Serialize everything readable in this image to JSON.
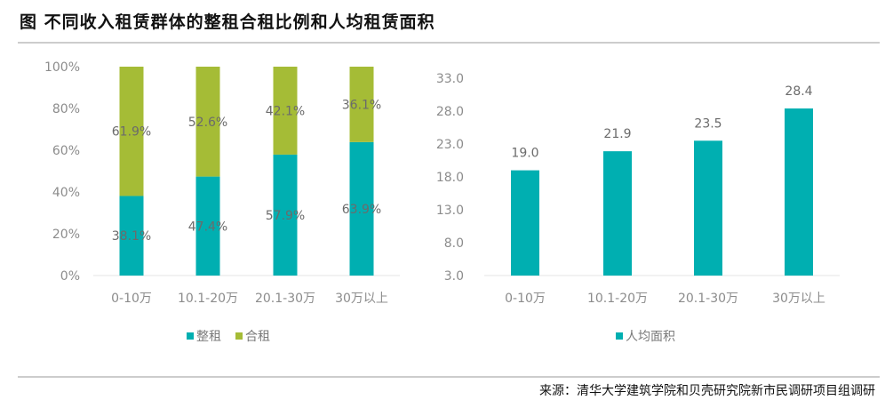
{
  "title": "图  不同收入租赁群体的整租合租比例和人均租赁面积",
  "source": "来源：清华大学建筑学院和贝壳研究院新市民调研项目组调研",
  "colors": {
    "teal": "#00AFB1",
    "green": "#A5BC36"
  },
  "chart_data": [
    {
      "type": "bar",
      "stacked": true,
      "categories": [
        "0-10万",
        "10.1-20万",
        "20.1-30万",
        "30万以上"
      ],
      "series": [
        {
          "name": "整租",
          "values": [
            38.1,
            47.4,
            57.9,
            63.9
          ],
          "labels": [
            "38.1%",
            "47.4%",
            "57.9%",
            "63.9%"
          ],
          "color": "#00AFB1"
        },
        {
          "name": "合租",
          "values": [
            61.9,
            52.6,
            42.1,
            36.1
          ],
          "labels": [
            "61.9%",
            "52.6%",
            "42.1%",
            "36.1%"
          ],
          "color": "#A5BC36"
        }
      ],
      "ylim": [
        0,
        100
      ],
      "yticks": [
        "0%",
        "20%",
        "40%",
        "60%",
        "80%",
        "100%"
      ],
      "legend": "bottom",
      "grid": false
    },
    {
      "type": "bar",
      "categories": [
        "0-10万",
        "10.1-20万",
        "20.1-30万",
        "30万以上"
      ],
      "series": [
        {
          "name": "人均面积",
          "values": [
            19.0,
            21.9,
            23.5,
            28.4
          ],
          "labels": [
            "19.0",
            "21.9",
            "23.5",
            "28.4"
          ],
          "color": "#00AFB1"
        }
      ],
      "ylim": [
        3.0,
        33.0
      ],
      "yticks": [
        "3.0",
        "8.0",
        "13.0",
        "18.0",
        "23.0",
        "28.0",
        "33.0"
      ],
      "legend": "bottom",
      "grid": false
    }
  ]
}
